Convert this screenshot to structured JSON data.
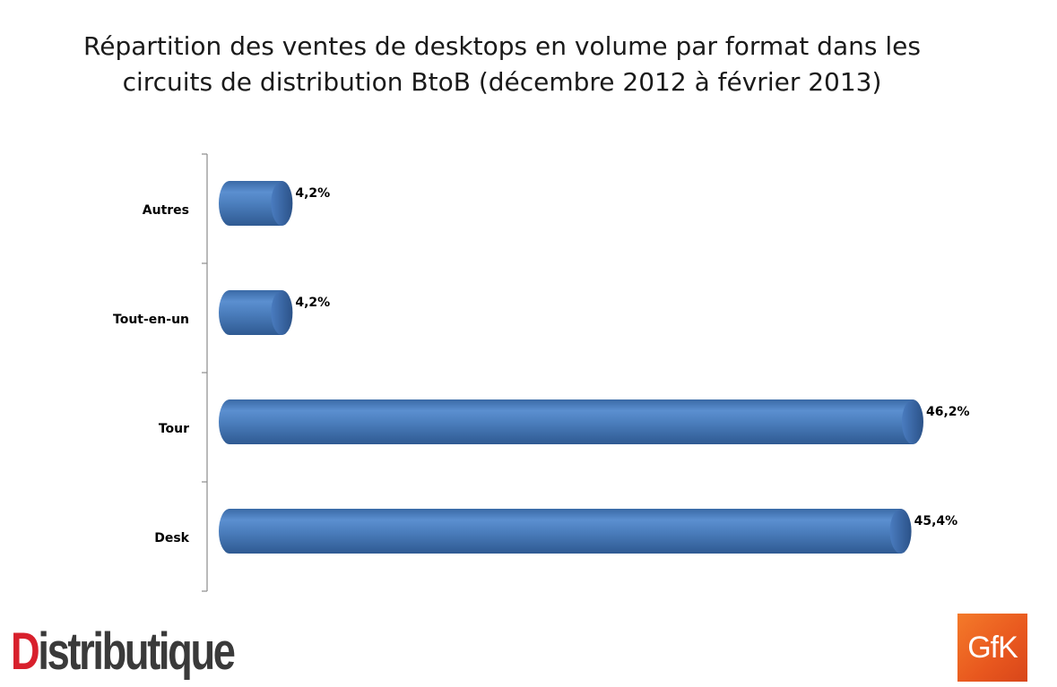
{
  "chart_data": {
    "type": "bar",
    "orientation": "horizontal",
    "title_lines": [
      "Répartition des ventes de desktops en volume par format dans les",
      "circuits de distribution BtoB (décembre 2012 à février 2013)"
    ],
    "categories": [
      "Autres",
      "Tout-en-un",
      "Tour",
      "Desk"
    ],
    "values": [
      4.2,
      4.2,
      46.2,
      45.4
    ],
    "value_labels": [
      "4,2%",
      "4,2%",
      "46,2%",
      "45,4%"
    ],
    "xlim": [
      0,
      46.2
    ],
    "grid": false,
    "legend": "none",
    "bar_style": "3d-cylinder",
    "bar_color": "#4f81bd"
  },
  "logos": {
    "left": {
      "first_letter": "D",
      "rest": "istributique"
    },
    "right": "GfK"
  }
}
